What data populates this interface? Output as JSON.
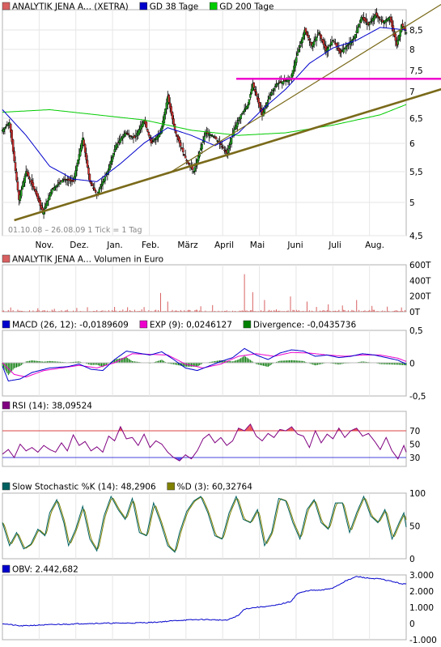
{
  "chart_data": [
    {
      "type": "candlestick",
      "legend": [
        {
          "label": "ANALYTIK JENA A... (XETRA)",
          "color": "#d86060"
        },
        {
          "label": "GD 38 Tage",
          "color": "#0000cc"
        },
        {
          "label": "GD 200 Tage",
          "color": "#00cc00"
        }
      ],
      "period_label": "01.10.08 – 26.08.09",
      "tick_label": "1 Tick = 1 Tag",
      "x_labels": [
        "Nov.",
        "Dez.",
        "Jan.",
        "Feb.",
        "März",
        "April",
        "Mai",
        "Juni",
        "Juli",
        "Aug."
      ],
      "y_ticks": [
        "8,5",
        "8",
        "7,5",
        "7",
        "6,5",
        "6",
        "5,5",
        "5",
        "4,5"
      ],
      "ylim": [
        4.5,
        8.8
      ],
      "close_keypoints": [
        [
          0,
          6.55
        ],
        [
          6,
          6.7
        ],
        [
          14,
          5.2
        ],
        [
          20,
          5.75
        ],
        [
          28,
          5.35
        ],
        [
          34,
          4.95
        ],
        [
          42,
          5.4
        ],
        [
          52,
          5.6
        ],
        [
          60,
          5.55
        ],
        [
          68,
          6.4
        ],
        [
          74,
          5.55
        ],
        [
          80,
          5.3
        ],
        [
          90,
          5.8
        ],
        [
          96,
          6.25
        ],
        [
          104,
          6.5
        ],
        [
          112,
          6.4
        ],
        [
          120,
          6.75
        ],
        [
          126,
          6.3
        ],
        [
          134,
          6.5
        ],
        [
          140,
          7.2
        ],
        [
          146,
          6.55
        ],
        [
          150,
          6.3
        ],
        [
          156,
          5.95
        ],
        [
          162,
          5.75
        ],
        [
          166,
          6.05
        ],
        [
          172,
          6.5
        ],
        [
          178,
          6.45
        ],
        [
          184,
          6.3
        ],
        [
          190,
          6.1
        ],
        [
          196,
          6.55
        ],
        [
          202,
          6.85
        ],
        [
          208,
          7.05
        ],
        [
          212,
          7.45
        ],
        [
          216,
          7.15
        ],
        [
          220,
          6.85
        ],
        [
          226,
          7.2
        ],
        [
          232,
          7.45
        ],
        [
          238,
          7.5
        ],
        [
          244,
          7.55
        ],
        [
          250,
          8.05
        ],
        [
          256,
          8.5
        ],
        [
          262,
          8.2
        ],
        [
          268,
          8.45
        ],
        [
          274,
          8.1
        ],
        [
          280,
          8.3
        ],
        [
          286,
          8.05
        ],
        [
          292,
          8.2
        ],
        [
          298,
          8.35
        ],
        [
          304,
          8.75
        ],
        [
          310,
          8.6
        ],
        [
          316,
          8.8
        ],
        [
          322,
          8.65
        ],
        [
          328,
          8.75
        ],
        [
          334,
          8.2
        ],
        [
          338,
          8.6
        ],
        [
          342,
          8.45
        ]
      ],
      "ma38_keypoints": [
        [
          0,
          6.95
        ],
        [
          20,
          6.45
        ],
        [
          40,
          5.85
        ],
        [
          60,
          5.6
        ],
        [
          80,
          5.55
        ],
        [
          100,
          5.9
        ],
        [
          120,
          6.3
        ],
        [
          140,
          6.6
        ],
        [
          160,
          6.45
        ],
        [
          180,
          6.25
        ],
        [
          200,
          6.5
        ],
        [
          220,
          6.95
        ],
        [
          240,
          7.35
        ],
        [
          260,
          7.85
        ],
        [
          280,
          8.15
        ],
        [
          300,
          8.3
        ],
        [
          320,
          8.55
        ],
        [
          342,
          8.5
        ]
      ],
      "ma200_keypoints": [
        [
          0,
          6.9
        ],
        [
          40,
          6.95
        ],
        [
          80,
          6.85
        ],
        [
          120,
          6.75
        ],
        [
          160,
          6.55
        ],
        [
          200,
          6.45
        ],
        [
          240,
          6.5
        ],
        [
          280,
          6.65
        ],
        [
          320,
          6.85
        ],
        [
          342,
          7.05
        ]
      ],
      "trendlines": [
        {
          "color": "#7a6a1a",
          "x0": 10,
          "y0": 4.8,
          "x1": 346,
          "y1": 7.15
        },
        {
          "color": "#7a6a1a",
          "x0": 140,
          "y0": 5.7,
          "x1": 346,
          "y1": 8.6
        },
        {
          "color": "#ee00cc",
          "x0": 198,
          "y0": 7.55,
          "x1": 346,
          "y1": 7.55
        }
      ]
    },
    {
      "type": "bar",
      "title": "ANALYTIK JENA A... Volumen in Euro",
      "color": "#d86060",
      "y_ticks": [
        "600T",
        "400T",
        "200T",
        "0T"
      ],
      "ylim": [
        0,
        600
      ],
      "spikes": [
        [
          7,
          55
        ],
        [
          30,
          45
        ],
        [
          44,
          38
        ],
        [
          63,
          48
        ],
        [
          72,
          58
        ],
        [
          95,
          62
        ],
        [
          106,
          58
        ],
        [
          120,
          60
        ],
        [
          134,
          240
        ],
        [
          140,
          130
        ],
        [
          168,
          70
        ],
        [
          178,
          85
        ],
        [
          205,
          480
        ],
        [
          212,
          250
        ],
        [
          222,
          150
        ],
        [
          244,
          195
        ],
        [
          258,
          130
        ],
        [
          266,
          62
        ],
        [
          276,
          95
        ],
        [
          288,
          80
        ],
        [
          300,
          150
        ],
        [
          313,
          75
        ],
        [
          326,
          65
        ],
        [
          338,
          55
        ]
      ]
    },
    {
      "type": "line",
      "legend": [
        {
          "label": "MACD (26, 12): -0,0189609",
          "color": "#0000cc"
        },
        {
          "label": "EXP (9): 0,0246127",
          "color": "#ee00cc"
        },
        {
          "label": "Divergence: -0,0435736",
          "color": "#008000"
        }
      ],
      "y_ticks": [
        "0,5",
        "0",
        "-0,5"
      ],
      "ylim": [
        -0.5,
        0.5
      ],
      "macd_keypoints": [
        [
          0,
          -0.05
        ],
        [
          5,
          -0.28
        ],
        [
          15,
          -0.25
        ],
        [
          25,
          -0.15
        ],
        [
          40,
          -0.08
        ],
        [
          55,
          -0.06
        ],
        [
          65,
          -0.02
        ],
        [
          75,
          -0.1
        ],
        [
          85,
          -0.12
        ],
        [
          95,
          0.05
        ],
        [
          105,
          0.18
        ],
        [
          115,
          0.15
        ],
        [
          125,
          0.12
        ],
        [
          135,
          0.17
        ],
        [
          145,
          0.05
        ],
        [
          155,
          -0.08
        ],
        [
          165,
          -0.12
        ],
        [
          175,
          -0.05
        ],
        [
          185,
          0.02
        ],
        [
          195,
          0.08
        ],
        [
          205,
          0.22
        ],
        [
          215,
          0.12
        ],
        [
          225,
          0.05
        ],
        [
          235,
          0.15
        ],
        [
          245,
          0.2
        ],
        [
          255,
          0.18
        ],
        [
          265,
          0.1
        ],
        [
          275,
          0.12
        ],
        [
          285,
          0.08
        ],
        [
          295,
          0.1
        ],
        [
          305,
          0.14
        ],
        [
          315,
          0.12
        ],
        [
          325,
          0.08
        ],
        [
          335,
          0.04
        ],
        [
          342,
          -0.02
        ]
      ],
      "signal_keypoints": [
        [
          0,
          0.0
        ],
        [
          10,
          -0.18
        ],
        [
          20,
          -0.22
        ],
        [
          35,
          -0.12
        ],
        [
          50,
          -0.08
        ],
        [
          65,
          -0.04
        ],
        [
          80,
          -0.08
        ],
        [
          95,
          0.0
        ],
        [
          110,
          0.14
        ],
        [
          125,
          0.13
        ],
        [
          140,
          0.12
        ],
        [
          155,
          -0.02
        ],
        [
          170,
          -0.08
        ],
        [
          185,
          -0.02
        ],
        [
          200,
          0.1
        ],
        [
          215,
          0.14
        ],
        [
          230,
          0.1
        ],
        [
          245,
          0.16
        ],
        [
          260,
          0.15
        ],
        [
          275,
          0.12
        ],
        [
          290,
          0.1
        ],
        [
          305,
          0.12
        ],
        [
          320,
          0.12
        ],
        [
          335,
          0.07
        ],
        [
          342,
          0.02
        ]
      ]
    },
    {
      "type": "line",
      "legend": [
        {
          "label": "RSI (14): 38,09524",
          "color": "#800080"
        }
      ],
      "y_ticks": [
        "70",
        "50",
        "30"
      ],
      "ylim": [
        20,
        95
      ],
      "thresholds": [
        {
          "value": 70,
          "color": "#dd4444"
        },
        {
          "value": 30,
          "color": "#4444dd"
        }
      ],
      "rsi_keypoints": [
        [
          0,
          35
        ],
        [
          5,
          42
        ],
        [
          10,
          30
        ],
        [
          15,
          50
        ],
        [
          20,
          40
        ],
        [
          25,
          45
        ],
        [
          30,
          38
        ],
        [
          35,
          48
        ],
        [
          40,
          42
        ],
        [
          45,
          38
        ],
        [
          50,
          52
        ],
        [
          55,
          40
        ],
        [
          60,
          64
        ],
        [
          65,
          48
        ],
        [
          70,
          54
        ],
        [
          75,
          40
        ],
        [
          80,
          46
        ],
        [
          85,
          38
        ],
        [
          90,
          62
        ],
        [
          95,
          55
        ],
        [
          100,
          76
        ],
        [
          105,
          58
        ],
        [
          110,
          60
        ],
        [
          115,
          48
        ],
        [
          120,
          65
        ],
        [
          125,
          45
        ],
        [
          130,
          55
        ],
        [
          135,
          50
        ],
        [
          140,
          38
        ],
        [
          145,
          30
        ],
        [
          150,
          25
        ],
        [
          155,
          34
        ],
        [
          160,
          28
        ],
        [
          165,
          40
        ],
        [
          170,
          58
        ],
        [
          175,
          65
        ],
        [
          180,
          52
        ],
        [
          185,
          60
        ],
        [
          190,
          48
        ],
        [
          195,
          55
        ],
        [
          200,
          74
        ],
        [
          205,
          70
        ],
        [
          210,
          80
        ],
        [
          215,
          62
        ],
        [
          220,
          55
        ],
        [
          225,
          66
        ],
        [
          230,
          60
        ],
        [
          235,
          72
        ],
        [
          240,
          70
        ],
        [
          245,
          76
        ],
        [
          250,
          65
        ],
        [
          255,
          62
        ],
        [
          260,
          45
        ],
        [
          265,
          70
        ],
        [
          270,
          52
        ],
        [
          275,
          65
        ],
        [
          280,
          58
        ],
        [
          285,
          74
        ],
        [
          290,
          60
        ],
        [
          295,
          70
        ],
        [
          300,
          74
        ],
        [
          305,
          62
        ],
        [
          310,
          66
        ],
        [
          315,
          55
        ],
        [
          320,
          42
        ],
        [
          325,
          60
        ],
        [
          330,
          40
        ],
        [
          335,
          28
        ],
        [
          340,
          48
        ],
        [
          342,
          38
        ]
      ]
    },
    {
      "type": "line",
      "legend": [
        {
          "label": "Slow Stochastic %K (14): 48,2906",
          "color": "#006060"
        },
        {
          "label": "%D (3): 60,32764",
          "color": "#808000"
        }
      ],
      "y_ticks": [
        "100",
        "50",
        "0"
      ],
      "ylim": [
        0,
        100
      ],
      "k_keypoints": [
        [
          0,
          55
        ],
        [
          6,
          20
        ],
        [
          12,
          40
        ],
        [
          18,
          15
        ],
        [
          24,
          22
        ],
        [
          30,
          45
        ],
        [
          36,
          35
        ],
        [
          40,
          70
        ],
        [
          46,
          90
        ],
        [
          52,
          55
        ],
        [
          56,
          20
        ],
        [
          62,
          45
        ],
        [
          68,
          80
        ],
        [
          74,
          30
        ],
        [
          80,
          12
        ],
        [
          86,
          65
        ],
        [
          92,
          95
        ],
        [
          98,
          75
        ],
        [
          104,
          60
        ],
        [
          110,
          92
        ],
        [
          116,
          40
        ],
        [
          122,
          35
        ],
        [
          128,
          85
        ],
        [
          134,
          55
        ],
        [
          140,
          20
        ],
        [
          146,
          10
        ],
        [
          150,
          40
        ],
        [
          156,
          72
        ],
        [
          162,
          88
        ],
        [
          168,
          95
        ],
        [
          174,
          70
        ],
        [
          180,
          35
        ],
        [
          186,
          30
        ],
        [
          192,
          70
        ],
        [
          198,
          95
        ],
        [
          204,
          60
        ],
        [
          210,
          55
        ],
        [
          216,
          75
        ],
        [
          222,
          20
        ],
        [
          228,
          40
        ],
        [
          234,
          92
        ],
        [
          240,
          88
        ],
        [
          246,
          55
        ],
        [
          252,
          30
        ],
        [
          258,
          75
        ],
        [
          264,
          90
        ],
        [
          270,
          55
        ],
        [
          276,
          45
        ],
        [
          282,
          85
        ],
        [
          288,
          85
        ],
        [
          294,
          40
        ],
        [
          300,
          70
        ],
        [
          306,
          95
        ],
        [
          312,
          65
        ],
        [
          318,
          55
        ],
        [
          324,
          75
        ],
        [
          330,
          30
        ],
        [
          336,
          55
        ],
        [
          340,
          70
        ],
        [
          342,
          48
        ]
      ]
    },
    {
      "type": "line",
      "legend": [
        {
          "label": "OBV: 2.442,682",
          "color": "#0000cc"
        }
      ],
      "y_ticks": [
        "3.000",
        "2.000",
        "1.000",
        "0",
        "-1.000"
      ],
      "ylim": [
        -1000,
        3000
      ],
      "obv_keypoints": [
        [
          0,
          0
        ],
        [
          15,
          -150
        ],
        [
          30,
          -100
        ],
        [
          50,
          -50
        ],
        [
          70,
          0
        ],
        [
          90,
          20
        ],
        [
          110,
          30
        ],
        [
          130,
          80
        ],
        [
          150,
          200
        ],
        [
          170,
          250
        ],
        [
          190,
          200
        ],
        [
          200,
          500
        ],
        [
          205,
          900
        ],
        [
          215,
          1000
        ],
        [
          230,
          1100
        ],
        [
          244,
          1350
        ],
        [
          250,
          1850
        ],
        [
          260,
          2050
        ],
        [
          270,
          2050
        ],
        [
          280,
          2200
        ],
        [
          290,
          2600
        ],
        [
          300,
          2900
        ],
        [
          310,
          2800
        ],
        [
          320,
          2750
        ],
        [
          330,
          2600
        ],
        [
          338,
          2450
        ],
        [
          342,
          2440
        ]
      ]
    }
  ]
}
